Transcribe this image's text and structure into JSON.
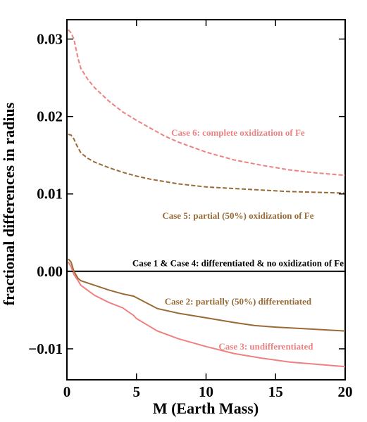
{
  "chart_data": {
    "type": "line",
    "title": "",
    "xlabel": "M (Earth Mass)",
    "ylabel": "fractional differences in radius",
    "xlim": [
      0,
      20
    ],
    "ylim": [
      -0.014,
      0.0325
    ],
    "xticks": [
      0,
      5,
      10,
      15,
      20
    ],
    "xtick_labels": [
      "0",
      "5",
      "10",
      "15",
      "20"
    ],
    "yticks": [
      -0.01,
      0.0,
      0.01,
      0.02,
      0.03
    ],
    "ytick_labels": [
      "−0.01",
      "0.00",
      "0.01",
      "0.02",
      "0.03"
    ],
    "grid": false,
    "legend": "none",
    "series": [
      {
        "color": "#f08080",
        "dash": "dashed",
        "points": [
          [
            0.1,
            0.0312
          ],
          [
            0.3,
            0.0308
          ],
          [
            0.5,
            0.03
          ],
          [
            0.8,
            0.0275
          ],
          [
            1,
            0.0262
          ],
          [
            1.5,
            0.0248
          ],
          [
            2,
            0.0237
          ],
          [
            3,
            0.022
          ],
          [
            4,
            0.0206
          ],
          [
            5,
            0.0195
          ],
          [
            6,
            0.0185
          ],
          [
            7,
            0.0175
          ],
          [
            8,
            0.0167
          ],
          [
            10,
            0.0154
          ],
          [
            12,
            0.0144
          ],
          [
            14,
            0.0137
          ],
          [
            16,
            0.0131
          ],
          [
            18,
            0.0127
          ],
          [
            20,
            0.0124
          ]
        ]
      },
      {
        "color": "#9a6a35",
        "dash": "dashed",
        "points": [
          [
            0.1,
            0.0177
          ],
          [
            0.3,
            0.0176
          ],
          [
            0.5,
            0.0171
          ],
          [
            0.7,
            0.0163
          ],
          [
            1,
            0.0153
          ],
          [
            1.5,
            0.0146
          ],
          [
            2,
            0.0141
          ],
          [
            3,
            0.0134
          ],
          [
            4,
            0.0128
          ],
          [
            5,
            0.0123
          ],
          [
            6,
            0.0119
          ],
          [
            7,
            0.0116
          ],
          [
            8,
            0.0113
          ],
          [
            10,
            0.0109
          ],
          [
            12,
            0.0107
          ],
          [
            14,
            0.0105
          ],
          [
            16,
            0.0103
          ],
          [
            18,
            0.0102
          ],
          [
            20,
            0.0101
          ]
        ]
      },
      {
        "color": "#000000",
        "dash": "solid",
        "points": [
          [
            0,
            0.0
          ],
          [
            20,
            0.0
          ]
        ]
      },
      {
        "color": "#9a6a35",
        "dash": "solid",
        "points": [
          [
            0.1,
            0.0016
          ],
          [
            0.3,
            0.0012
          ],
          [
            0.5,
            0.0
          ],
          [
            0.8,
            -0.0009
          ],
          [
            1,
            -0.0012
          ],
          [
            2,
            -0.0018
          ],
          [
            3,
            -0.0024
          ],
          [
            4,
            -0.0029
          ],
          [
            4.8,
            -0.0032
          ],
          [
            5,
            -0.0034
          ],
          [
            6.5,
            -0.0048
          ],
          [
            8,
            -0.0054
          ],
          [
            10,
            -0.006
          ],
          [
            12,
            -0.0066
          ],
          [
            13.5,
            -0.007
          ],
          [
            15,
            -0.0072
          ],
          [
            17,
            -0.0074
          ],
          [
            20,
            -0.0077
          ]
        ]
      },
      {
        "color": "#f08080",
        "dash": "solid",
        "points": [
          [
            0.1,
            0.0012
          ],
          [
            0.3,
            0.0006
          ],
          [
            0.5,
            -0.0004
          ],
          [
            0.8,
            -0.0012
          ],
          [
            1,
            -0.0018
          ],
          [
            2,
            -0.0031
          ],
          [
            3,
            -0.004
          ],
          [
            4,
            -0.0047
          ],
          [
            4.8,
            -0.0057
          ],
          [
            5,
            -0.0061
          ],
          [
            6.5,
            -0.0077
          ],
          [
            8,
            -0.0087
          ],
          [
            10,
            -0.0097
          ],
          [
            12,
            -0.0106
          ],
          [
            14,
            -0.0112
          ],
          [
            16,
            -0.0117
          ],
          [
            18,
            -0.012
          ],
          [
            20,
            -0.0123
          ]
        ]
      }
    ],
    "annotations": [
      {
        "text": "Case 6: complete oxidization of Fe",
        "x": 12.3,
        "y": 0.0175,
        "color": "#f08080"
      },
      {
        "text": "Case 5: partial (50%) oxidization of Fe",
        "x": 12.3,
        "y": 0.0068,
        "color": "#9a6a35"
      },
      {
        "text": "Case 1 & Case 4: differentiated & no oxidization of Fe",
        "x": 12.3,
        "y": 0.00065,
        "color": "#000000"
      },
      {
        "text": "Case 2: partially (50%) differentiated",
        "x": 12.3,
        "y": -0.0043,
        "color": "#9a6a35"
      },
      {
        "text": "Case 3: undifferentiated",
        "x": 14.3,
        "y": -0.0101,
        "color": "#f08080"
      }
    ]
  }
}
